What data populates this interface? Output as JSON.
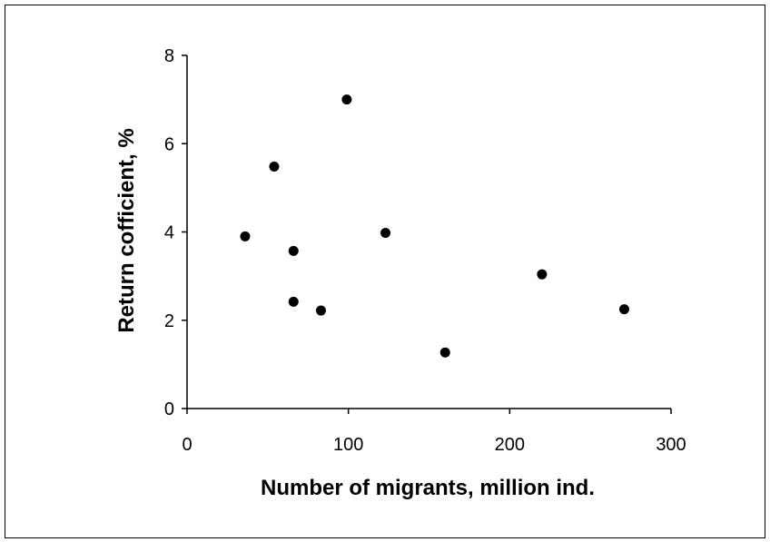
{
  "chart_data": {
    "type": "scatter",
    "title": "",
    "xlabel": "Number of migrants, million ind.",
    "ylabel": "Return cofficient, %",
    "xlim": [
      0,
      300
    ],
    "ylim": [
      0,
      8
    ],
    "x_ticks": [
      "0",
      "100",
      "200",
      "300"
    ],
    "y_ticks": [
      "0",
      "2",
      "4",
      "6",
      "8"
    ],
    "grid": false,
    "legend": "none",
    "marker_color": "#000000",
    "points": [
      {
        "x": 36,
        "y": 3.9
      },
      {
        "x": 54,
        "y": 5.48
      },
      {
        "x": 66,
        "y": 3.57
      },
      {
        "x": 66,
        "y": 2.42
      },
      {
        "x": 83,
        "y": 2.22
      },
      {
        "x": 99,
        "y": 7.0
      },
      {
        "x": 123,
        "y": 3.98
      },
      {
        "x": 160,
        "y": 1.27
      },
      {
        "x": 220,
        "y": 3.04
      },
      {
        "x": 271,
        "y": 2.25
      }
    ]
  }
}
